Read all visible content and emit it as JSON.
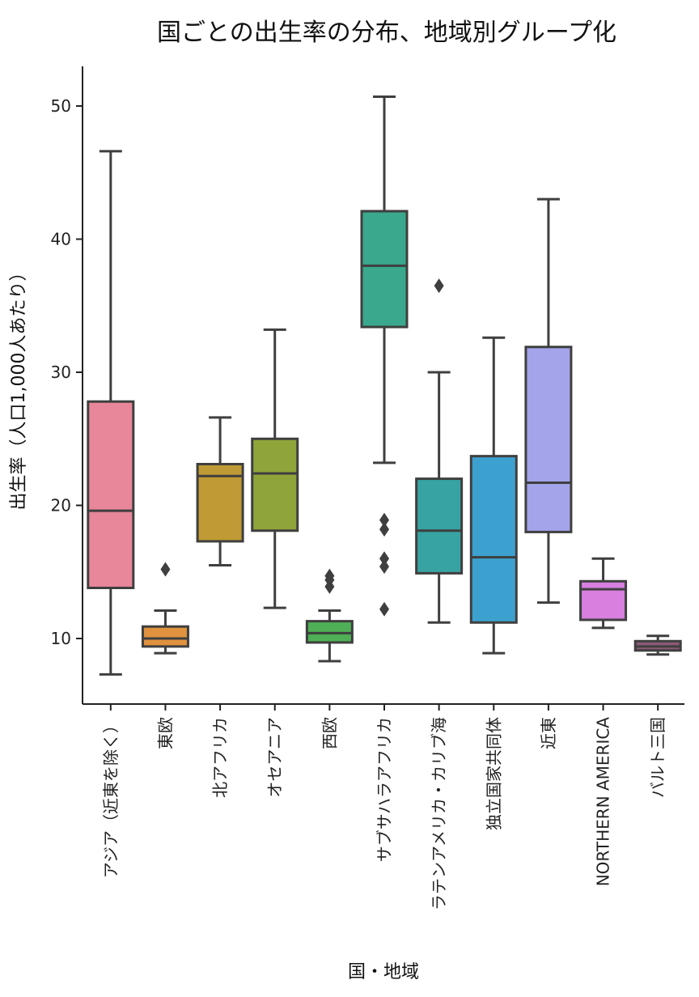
{
  "chart_data": {
    "type": "box",
    "title": "国ごとの出生率の分布、地域別グループ化",
    "xlabel": "国・地域",
    "ylabel": "出生率（人口1,000人あたり）",
    "ylim": [
      5,
      53
    ],
    "yticks": [
      10,
      20,
      30,
      40,
      50
    ],
    "categories": [
      {
        "label": "アジア（近東を除く）",
        "color": "#e8869a",
        "whislo": 7.3,
        "q1": 13.8,
        "med": 19.6,
        "q3": 27.8,
        "whishi": 46.6,
        "fliers": []
      },
      {
        "label": "東欧",
        "color": "#e0923e",
        "whislo": 8.9,
        "q1": 9.4,
        "med": 10.0,
        "q3": 10.9,
        "whishi": 12.1,
        "fliers": [
          15.2
        ]
      },
      {
        "label": "北アフリカ",
        "color": "#c09a34",
        "whislo": 15.5,
        "q1": 17.3,
        "med": 22.2,
        "q3": 23.1,
        "whishi": 26.6,
        "fliers": []
      },
      {
        "label": "オセアニア",
        "color": "#8fa53a",
        "whislo": 12.3,
        "q1": 18.1,
        "med": 22.4,
        "q3": 25.0,
        "whishi": 33.2,
        "fliers": []
      },
      {
        "label": "西欧",
        "color": "#4faf56",
        "whislo": 8.3,
        "q1": 9.7,
        "med": 10.4,
        "q3": 11.3,
        "whishi": 12.1,
        "fliers": [
          13.9,
          14.4,
          14.7
        ]
      },
      {
        "label": "サブサハラアフリカ",
        "color": "#39a88c",
        "whislo": 23.2,
        "q1": 33.4,
        "med": 38.0,
        "q3": 42.1,
        "whishi": 50.7,
        "fliers": [
          12.2,
          15.4,
          16.0,
          18.2,
          18.9
        ]
      },
      {
        "label": "ラテンアメリカ・カリブ海",
        "color": "#37a3a3",
        "whislo": 11.2,
        "q1": 14.9,
        "med": 18.1,
        "q3": 22.0,
        "whishi": 30.0,
        "fliers": [
          36.5
        ]
      },
      {
        "label": "独立国家共同体",
        "color": "#3da1cf",
        "whislo": 8.9,
        "q1": 11.2,
        "med": 16.1,
        "q3": 23.7,
        "whishi": 32.6,
        "fliers": []
      },
      {
        "label": "近東",
        "color": "#a3a4ea",
        "whislo": 12.7,
        "q1": 18.0,
        "med": 21.7,
        "q3": 31.9,
        "whishi": 43.0,
        "fliers": []
      },
      {
        "label": "NORTHERN AMERICA",
        "color": "#d87fe0",
        "whislo": 10.8,
        "q1": 11.4,
        "med": 13.7,
        "q3": 14.3,
        "whishi": 16.0,
        "fliers": []
      },
      {
        "label": "バルト三国",
        "color": "#8c5a78",
        "whislo": 8.8,
        "q1": 9.1,
        "med": 9.4,
        "q3": 9.8,
        "whishi": 10.2,
        "fliers": []
      }
    ]
  }
}
